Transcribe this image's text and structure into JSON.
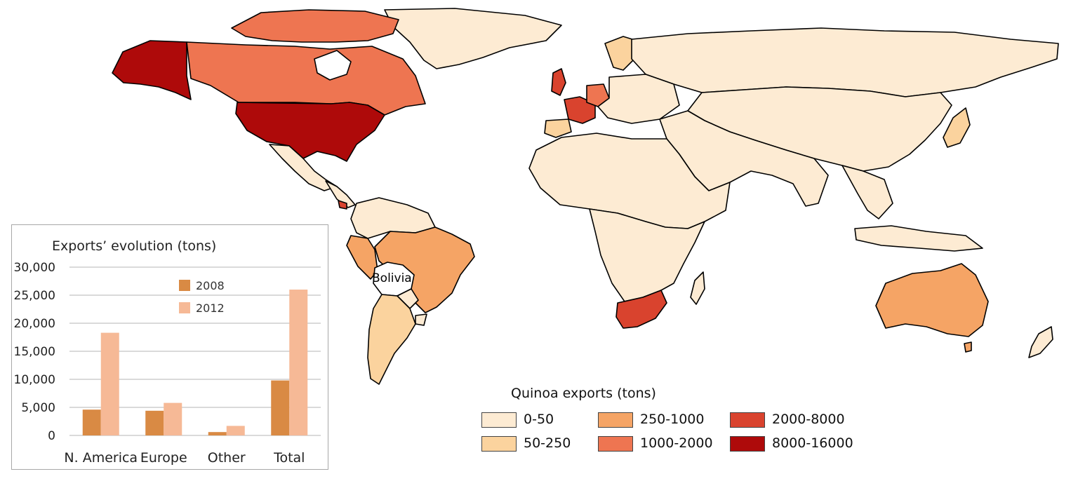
{
  "map": {
    "labels": {
      "bolivia": "Bolivia"
    },
    "legend": {
      "title": "Quinoa exports (tons)",
      "items": [
        {
          "label": "0-50",
          "color": "#fdebd3"
        },
        {
          "label": "50-250",
          "color": "#fbd39e"
        },
        {
          "label": "250-1000",
          "color": "#f5a465"
        },
        {
          "label": "1000-2000",
          "color": "#ee7551"
        },
        {
          "label": "2000-8000",
          "color": "#d9432e"
        },
        {
          "label": "8000-16000",
          "color": "#ae0a0a"
        }
      ]
    }
  },
  "chart_data": {
    "type": "bar",
    "title": "Exports’ evolution (tons)",
    "categories": [
      "N. America",
      "Europe",
      "Other",
      "Total"
    ],
    "series": [
      {
        "name": "2008",
        "color": "#d98a44",
        "values": [
          4600,
          4400,
          600,
          9800
        ]
      },
      {
        "name": "2012",
        "color": "#f6b996",
        "values": [
          18300,
          5800,
          1700,
          26000
        ]
      }
    ],
    "ylim": [
      0,
      30000
    ],
    "yticks": [
      "0",
      "5,000",
      "10,000",
      "15,000",
      "20,000",
      "25,000",
      "30,000"
    ],
    "grid": true,
    "legend_position": "top-center"
  }
}
